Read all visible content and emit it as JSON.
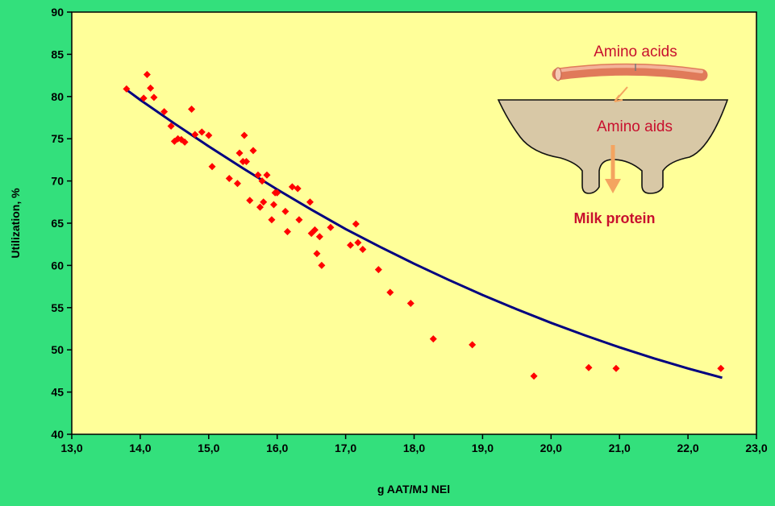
{
  "colors": {
    "background": "#33e07c",
    "plot_area": "#ffff99",
    "points": "#ff0000",
    "trend_line": "#000080",
    "inset_text": "#c8102e",
    "udder": "#d8c8a6",
    "vessel": "#e07a5a",
    "arrow": "#f4a460"
  },
  "inset": {
    "vessel_label": "Amino acids",
    "udder_label": "Amino aids",
    "output_label": "Milk protein",
    "vessel_icon": "blood-vessel-icon",
    "udder_icon": "udder-icon",
    "arrow_icon": "down-arrow-icon"
  },
  "chart_data": {
    "type": "scatter",
    "title": "",
    "xlabel": "g AAT/MJ NEl",
    "ylabel": "Utilization, %",
    "xlim": [
      13.0,
      23.0
    ],
    "ylim": [
      40,
      90
    ],
    "x_tick_labels": [
      "13,0",
      "14,0",
      "15,0",
      "16,0",
      "17,0",
      "18,0",
      "19,0",
      "20,0",
      "21,0",
      "22,0",
      "23,0"
    ],
    "y_tick_labels": [
      "40",
      "45",
      "50",
      "55",
      "60",
      "65",
      "70",
      "75",
      "80",
      "85",
      "90"
    ],
    "grid": false,
    "legend": "none",
    "series": [
      {
        "kind": "points",
        "x": [
          13.8,
          14.05,
          14.1,
          14.15,
          14.2,
          14.35,
          14.45,
          14.5,
          14.55,
          14.6,
          14.65,
          14.75,
          14.8,
          14.9,
          15.0,
          15.05,
          15.3,
          15.42,
          15.45,
          15.5,
          15.52,
          15.55,
          15.6,
          15.65,
          15.72,
          15.75,
          15.78,
          15.8,
          15.85,
          15.92,
          15.95,
          15.97,
          16.0,
          16.12,
          16.15,
          16.22,
          16.3,
          16.32,
          16.48,
          16.5,
          16.55,
          16.58,
          16.62,
          16.65,
          16.78,
          17.07,
          17.15,
          17.18,
          17.25,
          17.48,
          17.65,
          17.95,
          18.28,
          18.85,
          19.75,
          20.55,
          20.95,
          22.48
        ],
        "y": [
          80.9,
          79.8,
          82.6,
          81.0,
          79.9,
          78.2,
          76.5,
          74.7,
          75.0,
          74.9,
          74.6,
          78.5,
          75.5,
          75.8,
          75.4,
          71.7,
          70.3,
          69.7,
          73.3,
          72.3,
          75.4,
          72.3,
          67.7,
          73.6,
          70.7,
          66.9,
          70.0,
          67.5,
          70.7,
          65.4,
          67.2,
          68.6,
          68.6,
          66.4,
          64.0,
          69.3,
          69.1,
          65.4,
          67.5,
          63.8,
          64.2,
          61.4,
          63.4,
          60.0,
          64.5,
          62.4,
          64.9,
          62.7,
          61.9,
          59.5,
          56.8,
          55.5,
          51.3,
          50.6,
          46.9,
          47.9,
          47.8,
          47.8
        ],
        "_note_ignore": ""
      },
      {
        "kind": "trend",
        "x": [
          13.8,
          14.0,
          14.5,
          15.0,
          15.5,
          16.0,
          16.5,
          17.0,
          17.5,
          18.0,
          18.5,
          19.0,
          19.5,
          20.0,
          20.5,
          21.0,
          21.5,
          22.0,
          22.5
        ],
        "y": [
          80.8,
          79.6,
          76.8,
          74.1,
          71.5,
          69.0,
          66.6,
          64.3,
          62.2,
          60.2,
          58.3,
          56.5,
          54.8,
          53.2,
          51.7,
          50.3,
          49.0,
          47.8,
          46.7
        ]
      }
    ]
  }
}
